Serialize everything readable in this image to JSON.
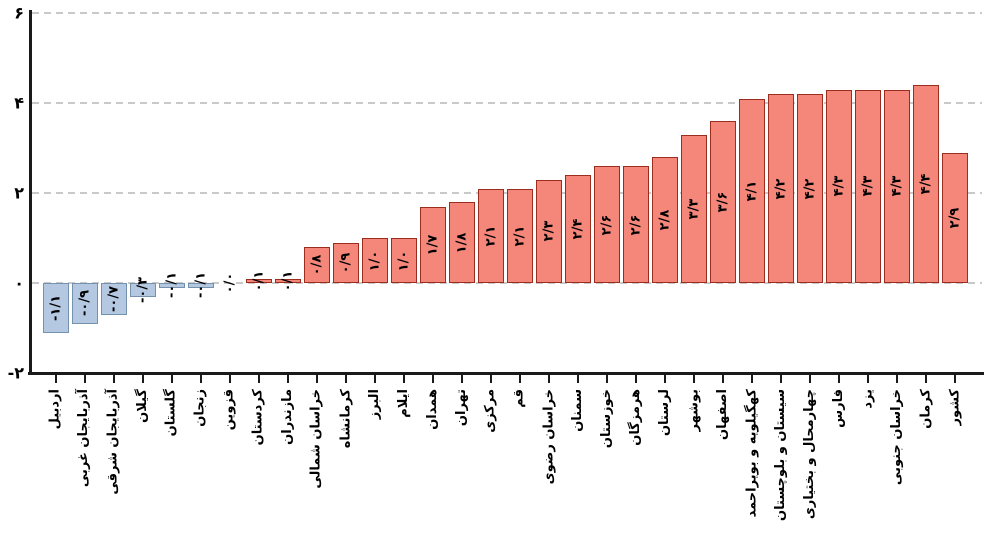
{
  "chart_data": {
    "type": "bar",
    "title": "",
    "xlabel": "",
    "ylabel": "",
    "ylim": [
      -2,
      6
    ],
    "grid": "horizontal-dashed",
    "legend": null,
    "yticks": [
      {
        "value": 6,
        "label": "۶"
      },
      {
        "value": 4,
        "label": "۴"
      },
      {
        "value": 2,
        "label": "۲"
      },
      {
        "value": 0,
        "label": "۰"
      },
      {
        "value": -2,
        "label": "-۲"
      }
    ],
    "categories": [
      "اردبیل",
      "آذربایجان غربی",
      "آذربایجان شرقی",
      "گیلان",
      "گلستان",
      "زنجان",
      "قزوین",
      "کردستان",
      "مازندران",
      "خراسان شمالی",
      "کرمانشاه",
      "البرز",
      "ایلام",
      "همدان",
      "تهران",
      "مرکزی",
      "قم",
      "خراسان رضوی",
      "سمنان",
      "خوزستان",
      "هرمزگان",
      "لرستان",
      "بوشهر",
      "اصفهان",
      "کهگیلویه و بویراحمد",
      "سیستان و بلوچستان",
      "چهارمحال و بختیاری",
      "فارس",
      "یزد",
      "خراسان جنوبی",
      "کرمان",
      "کشور"
    ],
    "values": [
      -1.1,
      -0.9,
      -0.7,
      -0.3,
      -0.1,
      -0.1,
      0.0,
      0.1,
      0.1,
      0.8,
      0.9,
      1.0,
      1.0,
      1.7,
      1.8,
      2.1,
      2.1,
      2.3,
      2.4,
      2.6,
      2.6,
      2.8,
      3.3,
      3.6,
      4.1,
      4.2,
      4.2,
      4.3,
      4.3,
      4.3,
      4.4,
      2.9
    ],
    "value_labels": [
      "-۱/۱",
      "-۰/۹",
      "-۰/۷",
      "-۰/۳",
      "-۰/۱",
      "-۰/۱",
      "۰/۰",
      "۰/۱",
      "۰/۱",
      "۰/۸",
      "۰/۹",
      "۱/۰",
      "۱/۰",
      "۱/۷",
      "۱/۸",
      "۲/۱",
      "۲/۱",
      "۲/۳",
      "۲/۴",
      "۲/۶",
      "۲/۶",
      "۲/۸",
      "۳/۳",
      "۳/۶",
      "۴/۱",
      "۴/۲",
      "۴/۲",
      "۴/۳",
      "۴/۳",
      "۴/۳",
      "۴/۴",
      "۲/۹"
    ],
    "colors": {
      "positive_fill": "#f4867a",
      "positive_border": "#9b2d1f",
      "negative_fill": "#b4c8e1",
      "negative_border": "#7491ae",
      "gridline": "#c9c9c9",
      "axis": "#1a1a1a",
      "label_text": "#000000"
    }
  }
}
